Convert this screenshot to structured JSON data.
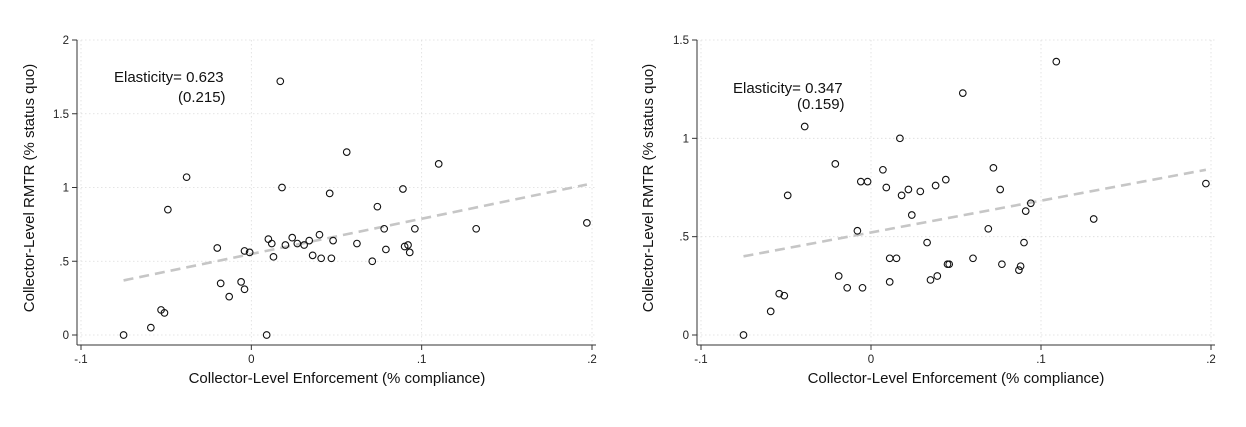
{
  "chart_data": [
    {
      "type": "scatter",
      "xlabel": "Collector-Level Enforcement (% compliance)",
      "ylabel": "Collector-Level RMTR (% status quo)",
      "xlim": [
        -0.1,
        0.2
      ],
      "ylim": [
        0,
        2
      ],
      "xticks": [
        {
          "value": -0.1,
          "label": "-.1"
        },
        {
          "value": 0,
          "label": "0"
        },
        {
          "value": 0.1,
          "label": ".1"
        },
        {
          "value": 0.2,
          "label": ".2"
        }
      ],
      "yticks": [
        {
          "value": 0,
          "label": "0"
        },
        {
          "value": 0.5,
          "label": ".5"
        },
        {
          "value": 1,
          "label": "1"
        },
        {
          "value": 1.5,
          "label": "1.5"
        },
        {
          "value": 2,
          "label": "2"
        }
      ],
      "grid": true,
      "annotation": {
        "line1": "Elasticity= 0.623",
        "line2": "(0.215)"
      },
      "fit_line": {
        "x": [
          -0.075,
          0.197
        ],
        "y": [
          0.37,
          1.02
        ]
      },
      "points": [
        {
          "x": -0.075,
          "y": 0.0
        },
        {
          "x": -0.059,
          "y": 0.05
        },
        {
          "x": -0.053,
          "y": 0.17
        },
        {
          "x": -0.051,
          "y": 0.15
        },
        {
          "x": -0.049,
          "y": 0.85
        },
        {
          "x": -0.038,
          "y": 1.07
        },
        {
          "x": -0.02,
          "y": 0.59
        },
        {
          "x": -0.018,
          "y": 0.35
        },
        {
          "x": -0.013,
          "y": 0.26
        },
        {
          "x": -0.006,
          "y": 0.36
        },
        {
          "x": -0.004,
          "y": 0.57
        },
        {
          "x": -0.004,
          "y": 0.31
        },
        {
          "x": -0.001,
          "y": 0.56
        },
        {
          "x": 0.009,
          "y": 0.0
        },
        {
          "x": 0.01,
          "y": 0.65
        },
        {
          "x": 0.012,
          "y": 0.62
        },
        {
          "x": 0.013,
          "y": 0.53
        },
        {
          "x": 0.017,
          "y": 1.72
        },
        {
          "x": 0.018,
          "y": 1.0
        },
        {
          "x": 0.02,
          "y": 0.61
        },
        {
          "x": 0.024,
          "y": 0.66
        },
        {
          "x": 0.027,
          "y": 0.62
        },
        {
          "x": 0.031,
          "y": 0.61
        },
        {
          "x": 0.034,
          "y": 0.64
        },
        {
          "x": 0.036,
          "y": 0.54
        },
        {
          "x": 0.04,
          "y": 0.68
        },
        {
          "x": 0.041,
          "y": 0.52
        },
        {
          "x": 0.046,
          "y": 0.96
        },
        {
          "x": 0.047,
          "y": 0.52
        },
        {
          "x": 0.048,
          "y": 0.64
        },
        {
          "x": 0.056,
          "y": 1.24
        },
        {
          "x": 0.062,
          "y": 0.62
        },
        {
          "x": 0.071,
          "y": 0.5
        },
        {
          "x": 0.074,
          "y": 0.87
        },
        {
          "x": 0.078,
          "y": 0.72
        },
        {
          "x": 0.079,
          "y": 0.58
        },
        {
          "x": 0.089,
          "y": 0.99
        },
        {
          "x": 0.09,
          "y": 0.6
        },
        {
          "x": 0.092,
          "y": 0.61
        },
        {
          "x": 0.093,
          "y": 0.56
        },
        {
          "x": 0.096,
          "y": 0.72
        },
        {
          "x": 0.11,
          "y": 1.16
        },
        {
          "x": 0.132,
          "y": 0.72
        },
        {
          "x": 0.197,
          "y": 0.76
        }
      ]
    },
    {
      "type": "scatter",
      "xlabel": "Collector-Level Enforcement (% compliance)",
      "ylabel": "Collector-Level RMTR (% status quo)",
      "xlim": [
        -0.1,
        0.2
      ],
      "ylim": [
        0,
        1.5
      ],
      "xticks": [
        {
          "value": -0.1,
          "label": "-.1"
        },
        {
          "value": 0,
          "label": "0"
        },
        {
          "value": 0.1,
          "label": ".1"
        },
        {
          "value": 0.2,
          "label": ".2"
        }
      ],
      "yticks": [
        {
          "value": 0,
          "label": "0"
        },
        {
          "value": 0.5,
          "label": ".5"
        },
        {
          "value": 1,
          "label": "1"
        },
        {
          "value": 1.5,
          "label": "1.5"
        }
      ],
      "grid": true,
      "annotation": {
        "line1": "Elasticity= 0.347",
        "line2": "(0.159)"
      },
      "fit_line": {
        "x": [
          -0.075,
          0.197
        ],
        "y": [
          0.4,
          0.84
        ]
      },
      "points": [
        {
          "x": -0.075,
          "y": 0.0
        },
        {
          "x": -0.059,
          "y": 0.12
        },
        {
          "x": -0.054,
          "y": 0.21
        },
        {
          "x": -0.051,
          "y": 0.2
        },
        {
          "x": -0.049,
          "y": 0.71
        },
        {
          "x": -0.039,
          "y": 1.06
        },
        {
          "x": -0.021,
          "y": 0.87
        },
        {
          "x": -0.019,
          "y": 0.3
        },
        {
          "x": -0.014,
          "y": 0.24
        },
        {
          "x": -0.008,
          "y": 0.53
        },
        {
          "x": -0.006,
          "y": 0.78
        },
        {
          "x": -0.005,
          "y": 0.24
        },
        {
          "x": -0.002,
          "y": 0.78
        },
        {
          "x": 0.007,
          "y": 0.84
        },
        {
          "x": 0.009,
          "y": 0.75
        },
        {
          "x": 0.011,
          "y": 0.39
        },
        {
          "x": 0.011,
          "y": 0.27
        },
        {
          "x": 0.015,
          "y": 0.39
        },
        {
          "x": 0.017,
          "y": 1.0
        },
        {
          "x": 0.018,
          "y": 0.71
        },
        {
          "x": 0.022,
          "y": 0.74
        },
        {
          "x": 0.024,
          "y": 0.61
        },
        {
          "x": 0.029,
          "y": 0.73
        },
        {
          "x": 0.033,
          "y": 0.47
        },
        {
          "x": 0.035,
          "y": 0.28
        },
        {
          "x": 0.038,
          "y": 0.76
        },
        {
          "x": 0.039,
          "y": 0.3
        },
        {
          "x": 0.044,
          "y": 0.79
        },
        {
          "x": 0.045,
          "y": 0.36
        },
        {
          "x": 0.046,
          "y": 0.36
        },
        {
          "x": 0.054,
          "y": 1.23
        },
        {
          "x": 0.06,
          "y": 0.39
        },
        {
          "x": 0.069,
          "y": 0.54
        },
        {
          "x": 0.072,
          "y": 0.85
        },
        {
          "x": 0.076,
          "y": 0.74
        },
        {
          "x": 0.077,
          "y": 0.36
        },
        {
          "x": 0.087,
          "y": 0.33
        },
        {
          "x": 0.088,
          "y": 0.35
        },
        {
          "x": 0.09,
          "y": 0.47
        },
        {
          "x": 0.091,
          "y": 0.63
        },
        {
          "x": 0.094,
          "y": 0.67
        },
        {
          "x": 0.109,
          "y": 1.39
        },
        {
          "x": 0.131,
          "y": 0.59
        },
        {
          "x": 0.197,
          "y": 0.77
        }
      ]
    }
  ]
}
